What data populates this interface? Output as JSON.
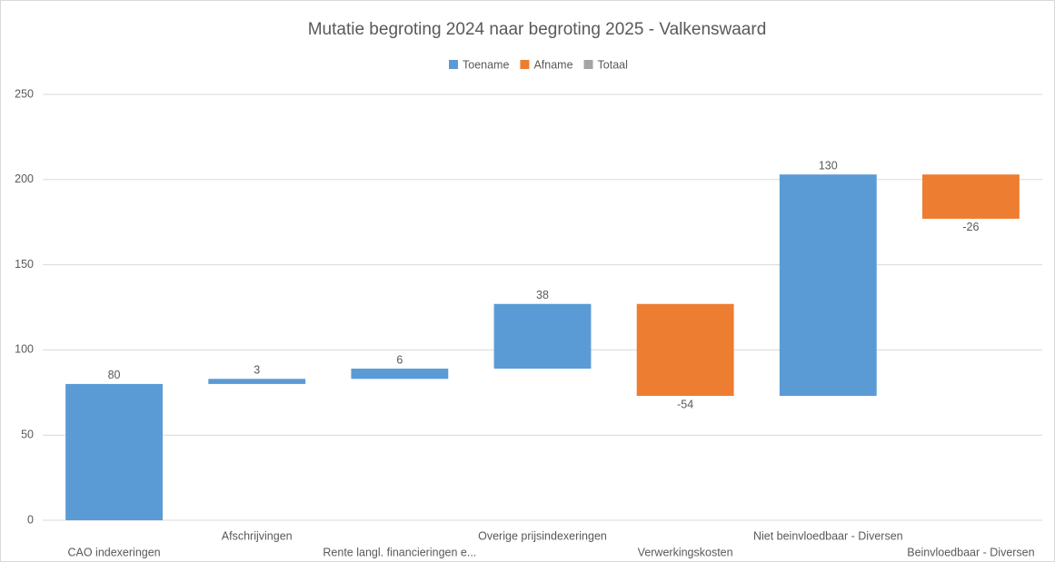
{
  "chart_data": {
    "type": "waterfall",
    "title": "Mutatie begroting 2024 naar begroting 2025 - Valkenswaard",
    "legend": [
      {
        "name": "Toename",
        "color": "#5b9bd5"
      },
      {
        "name": "Afname",
        "color": "#ed7d31"
      },
      {
        "name": "Totaal",
        "color": "#a5a5a5"
      }
    ],
    "categories": [
      "CAO indexeringen",
      "Afschrijvingen",
      "Rente langl. financieringen e...",
      "Overige prijsindexeringen",
      "Verwerkingskosten",
      "Niet beinvloedbaar - Diversen",
      "Beinvloedbaar - Diversen"
    ],
    "values": [
      80,
      3,
      6,
      38,
      -54,
      130,
      -26
    ],
    "ylim": [
      0,
      250
    ],
    "yticks": [
      0,
      50,
      100,
      150,
      200,
      250
    ],
    "grid": true
  }
}
